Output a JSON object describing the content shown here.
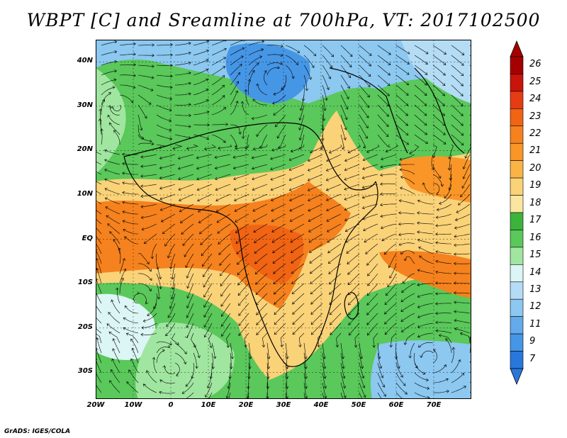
{
  "title": "WBPT [C] and Sreamline at 700hPa, VT: 2017102500",
  "credit": "GrADS: IGES/COLA",
  "lat_labels": [
    "40N",
    "30N",
    "20N",
    "10N",
    "EQ",
    "10S",
    "20S",
    "30S"
  ],
  "lon_labels": [
    "20W",
    "10W",
    "0",
    "10E",
    "20E",
    "30E",
    "40E",
    "50E",
    "60E",
    "70E"
  ],
  "colorbar": {
    "labels": [
      "26",
      "25",
      "24",
      "23",
      "22",
      "21",
      "20",
      "19",
      "18",
      "17",
      "16",
      "15",
      "14",
      "13",
      "12",
      "11",
      "9",
      "7"
    ],
    "colors": [
      "#a50000",
      "#c8140a",
      "#e63c14",
      "#f06414",
      "#f5821e",
      "#fa9628",
      "#fab446",
      "#fad278",
      "#fae6a0",
      "#3cb43c",
      "#5ac85a",
      "#a0e6a0",
      "#dcf5f5",
      "#b4dcf5",
      "#8cc8f0",
      "#64aaeb",
      "#4696e6",
      "#2878dc"
    ]
  },
  "map": {
    "lat_range": [
      -36,
      45
    ],
    "lon_range": [
      -20,
      80
    ]
  }
}
